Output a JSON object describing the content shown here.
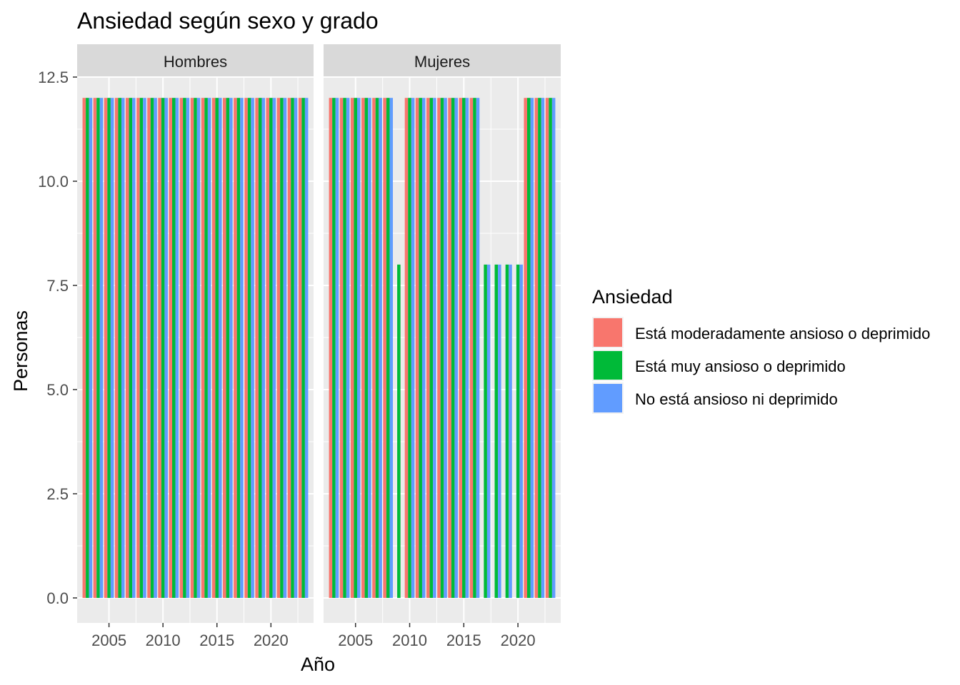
{
  "chart_data": {
    "type": "bar",
    "title": "Ansiedad según sexo y grado",
    "xlabel": "Año",
    "ylabel": "Personas",
    "ylim": [
      -0.6,
      12.5
    ],
    "xlim": [
      2002.05,
      2023.95
    ],
    "yticks": [
      0,
      2.5,
      5,
      7.5,
      10,
      12.5
    ],
    "ytick_labels": [
      "0.0",
      "2.5",
      "5.0",
      "7.5",
      "10.0",
      "12.5"
    ],
    "xticks": [
      2005,
      2010,
      2015,
      2020
    ],
    "xtick_labels": [
      "2005",
      "2010",
      "2015",
      "2020"
    ],
    "grid": true,
    "legend": {
      "title": "Ansiedad",
      "position": "right",
      "entries": [
        {
          "label": "Está moderadamente ansioso o deprimido",
          "color": "#F8766D"
        },
        {
          "label": "Está muy ansioso o deprimido",
          "color": "#00BA38"
        },
        {
          "label": "No está ansioso ni deprimido",
          "color": "#619CFF"
        }
      ]
    },
    "years": [
      2003,
      2004,
      2005,
      2006,
      2007,
      2008,
      2009,
      2010,
      2011,
      2012,
      2013,
      2014,
      2015,
      2016,
      2017,
      2018,
      2019,
      2020,
      2021,
      2022,
      2023
    ],
    "panels": [
      {
        "name": "Hombres",
        "series": [
          {
            "name": "Está moderadamente ansioso o deprimido",
            "values": [
              12,
              12,
              12,
              12,
              12,
              12,
              12,
              12,
              12,
              12,
              12,
              12,
              12,
              12,
              12,
              12,
              12,
              12,
              12,
              12,
              12
            ]
          },
          {
            "name": "Está muy ansioso o deprimido",
            "values": [
              12,
              12,
              12,
              12,
              12,
              12,
              12,
              12,
              12,
              12,
              12,
              12,
              12,
              12,
              12,
              12,
              12,
              12,
              12,
              12,
              12
            ]
          },
          {
            "name": "No está ansioso ni deprimido",
            "values": [
              12,
              12,
              12,
              12,
              12,
              12,
              12,
              12,
              12,
              12,
              12,
              12,
              12,
              12,
              12,
              12,
              12,
              12,
              12,
              12,
              12
            ]
          }
        ]
      },
      {
        "name": "Mujeres",
        "series": [
          {
            "name": "Está moderadamente ansioso o deprimido",
            "values": [
              12,
              12,
              12,
              12,
              12,
              12,
              0,
              12,
              12,
              12,
              12,
              12,
              12,
              12,
              0,
              0,
              0,
              0,
              12,
              12,
              12
            ]
          },
          {
            "name": "Está muy ansioso o deprimido",
            "values": [
              12,
              12,
              12,
              12,
              12,
              12,
              8,
              12,
              12,
              12,
              12,
              12,
              12,
              12,
              8,
              8,
              8,
              8,
              12,
              12,
              12
            ]
          },
          {
            "name": "No está ansioso ni deprimido",
            "values": [
              12,
              12,
              12,
              12,
              12,
              12,
              0,
              12,
              12,
              12,
              12,
              12,
              12,
              12,
              8,
              8,
              8,
              8,
              12,
              12,
              12
            ]
          }
        ]
      }
    ]
  }
}
